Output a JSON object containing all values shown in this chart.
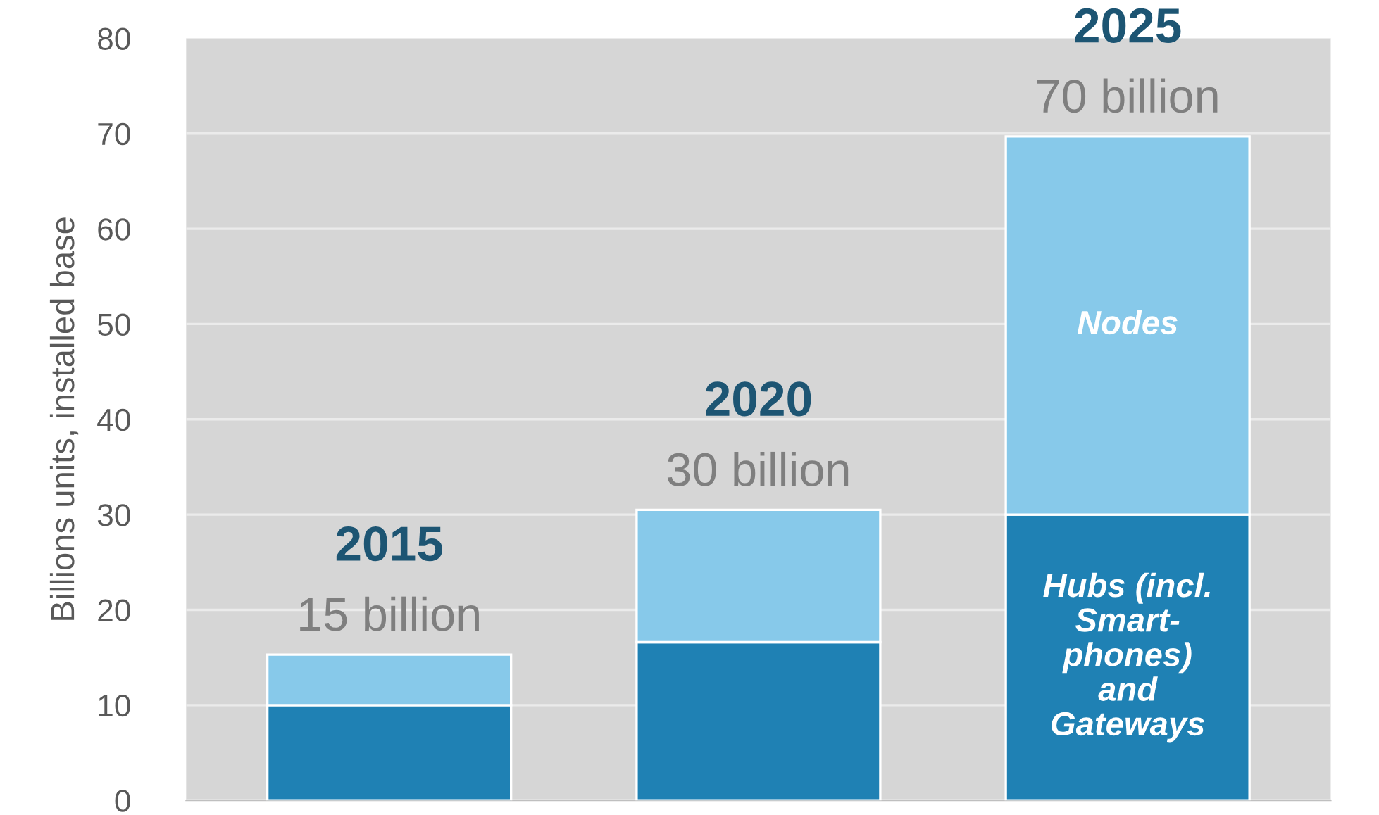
{
  "chart_data": {
    "type": "bar",
    "stacked": true,
    "ylabel": "Billions units, installed base",
    "categories": [
      "2015",
      "2020",
      "2025"
    ],
    "series": [
      {
        "name": "Hubs (incl.\nSmart-\nphones)\nand\nGateways",
        "color": "#1f81b4",
        "values": [
          10,
          16.6,
          30
        ]
      },
      {
        "name": "Nodes",
        "color": "#87c9ea",
        "values": [
          5.3,
          13.9,
          39.7
        ]
      }
    ],
    "totals": [
      "15 billion",
      "30 billion",
      "70 billion"
    ],
    "ylim": [
      0,
      80
    ],
    "yticks": [
      0,
      10,
      20,
      30,
      40,
      50,
      60,
      70,
      80
    ],
    "grid": "y"
  }
}
